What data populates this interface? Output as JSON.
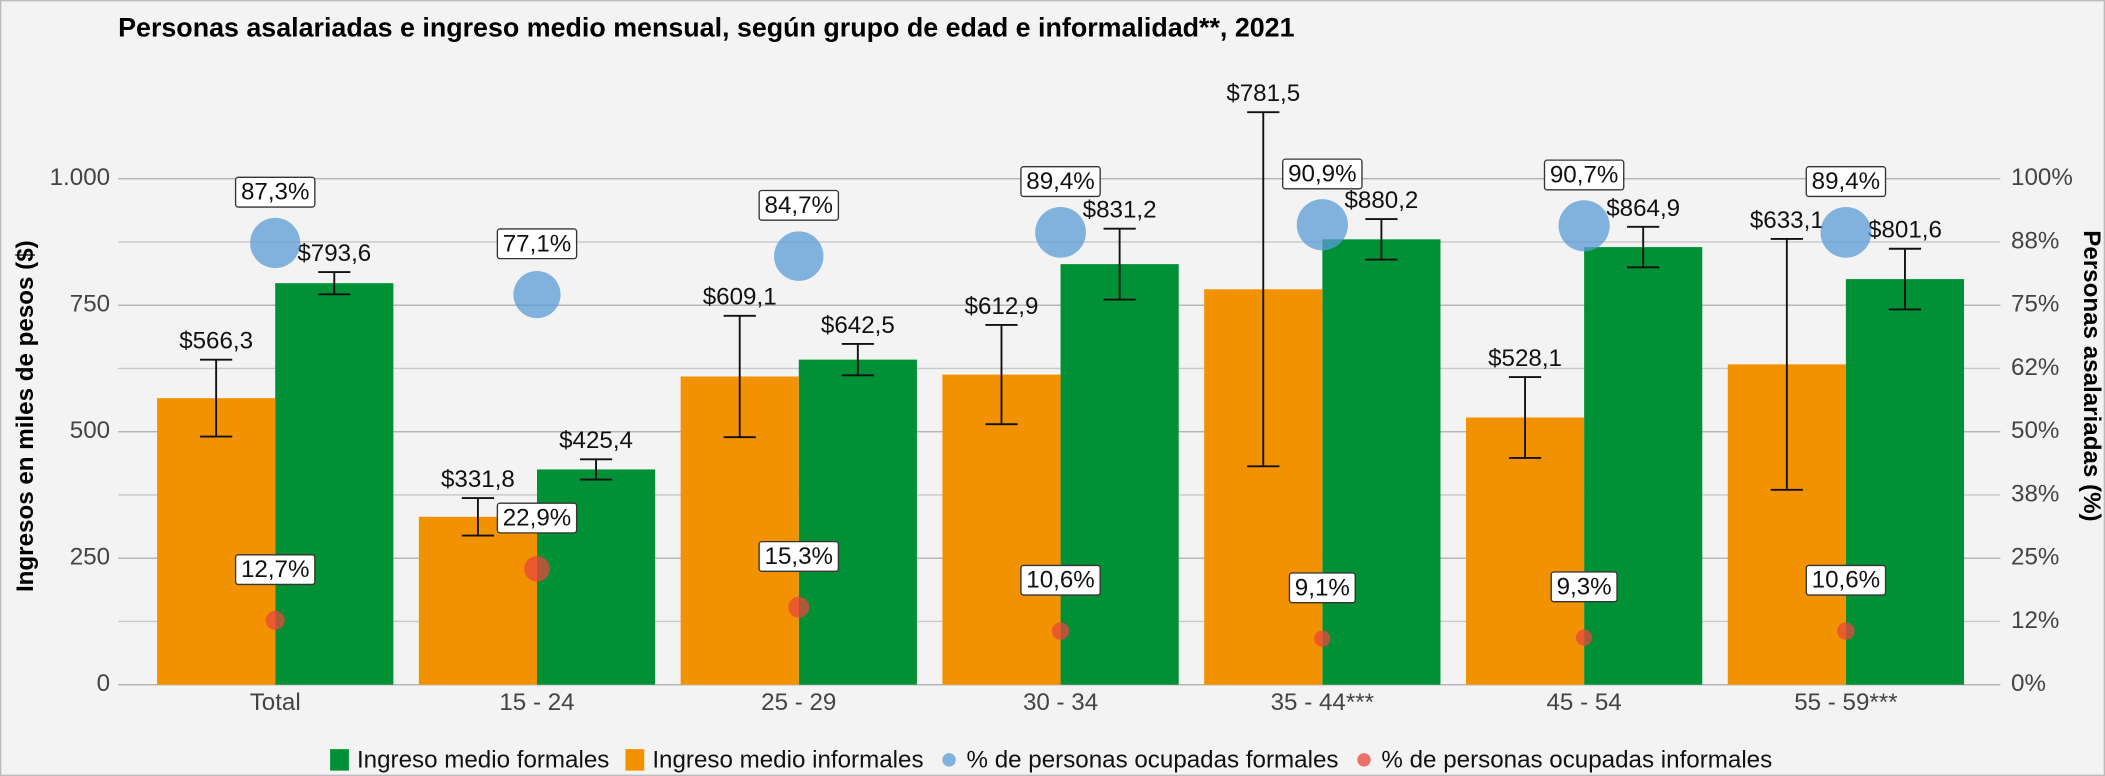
{
  "chart_data": {
    "type": "bar",
    "title": "Personas asalariadas e ingreso medio mensual, según grupo de edad e informalidad**, 2021",
    "y_label": "Ingresos en miles de pesos ($)",
    "y2_label": "Personas asalariadas (%)",
    "categories": [
      "Total",
      "15 - 24",
      "25 - 29",
      "30 - 34",
      "35 - 44***",
      "45 - 54",
      "55 - 59***"
    ],
    "ylim": [
      0,
      1125
    ],
    "yticks": [
      0,
      250,
      500,
      750,
      {
        "value": 1000,
        "label": "1.000"
      }
    ],
    "y2lim": [
      0,
      112.5
    ],
    "y2ticks": [
      {
        "value": 0,
        "label": "0%"
      },
      {
        "value": 12.5,
        "label": "12%"
      },
      {
        "value": 25,
        "label": "25%"
      },
      {
        "value": 37.5,
        "label": "38%"
      },
      {
        "value": 50,
        "label": "50%"
      },
      {
        "value": 62.5,
        "label": "62%"
      },
      {
        "value": 75,
        "label": "75%"
      },
      {
        "value": 87.5,
        "label": "88%"
      },
      {
        "value": 100,
        "label": "100%"
      }
    ],
    "grid": true,
    "legend": "bottom",
    "series": [
      {
        "name": "Ingreso medio formales",
        "type": "bar",
        "color": "#009036",
        "values": [
          793.6,
          425.4,
          642.5,
          831.2,
          880.2,
          864.9,
          801.6
        ],
        "value_labels": [
          "$793,6",
          "$425,4",
          "$642,5",
          "$831,2",
          "$880,2",
          "$864,9",
          "$801,6"
        ],
        "errors": [
          22,
          20,
          31,
          70,
          40,
          40,
          60
        ]
      },
      {
        "name": "Ingreso medio informales",
        "type": "bar",
        "color": "#f39200",
        "values": [
          566.3,
          331.8,
          609.1,
          612.9,
          781.5,
          528.1,
          633.1
        ],
        "value_labels": [
          "$566,3",
          "$331,8",
          "$609,1",
          "$612,9",
          "$781,5",
          "$528,1",
          "$633,1"
        ],
        "errors": [
          76,
          37,
          120,
          98,
          350,
          80,
          248
        ]
      },
      {
        "name": "% de personas ocupadas formales",
        "type": "scatter",
        "axis": "y2",
        "color": "#5b9bd5",
        "values": [
          87.3,
          77.1,
          84.7,
          89.4,
          90.9,
          90.7,
          89.4
        ],
        "value_labels": [
          "87,3%",
          "77,1%",
          "84,7%",
          "89,4%",
          "90,9%",
          "90,7%",
          "89,4%"
        ]
      },
      {
        "name": "% de personas ocupadas informales",
        "type": "scatter",
        "axis": "y2",
        "color": "#e7473c",
        "values": [
          12.7,
          22.9,
          15.3,
          10.6,
          9.1,
          9.3,
          10.6
        ],
        "value_labels": [
          "12,7%",
          "22,9%",
          "15,3%",
          "10,6%",
          "9,1%",
          "9,3%",
          "10,6%"
        ]
      }
    ]
  }
}
